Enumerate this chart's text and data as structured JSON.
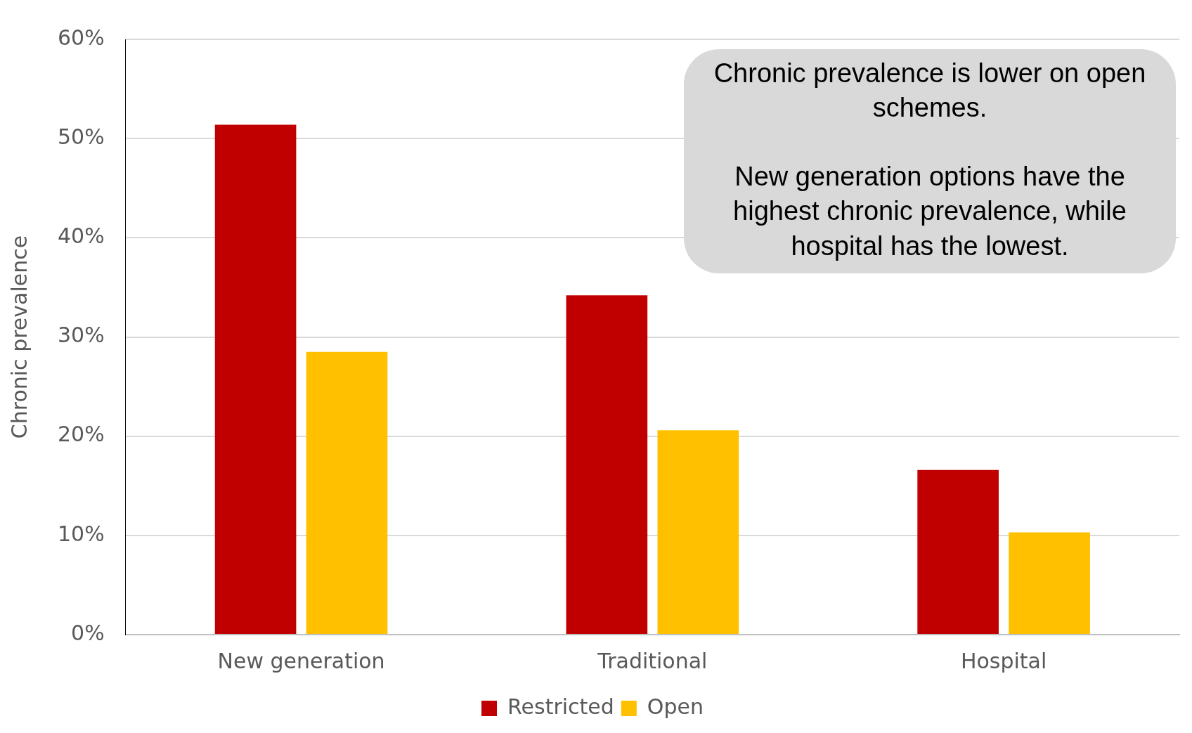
{
  "chart_data": {
    "type": "bar",
    "ylabel": "Chronic prevalence",
    "categories": [
      "New generation",
      "Traditional",
      "Hospital"
    ],
    "series": [
      {
        "name": "Restricted",
        "color": "#c00000",
        "values": [
          51.4,
          34.2,
          16.6
        ]
      },
      {
        "name": "Open",
        "color": "#ffc000",
        "values": [
          28.5,
          20.6,
          10.3
        ]
      }
    ],
    "ylim": [
      0,
      60
    ],
    "yticks": [
      {
        "value": 0,
        "label": "0%"
      },
      {
        "value": 10,
        "label": "10%"
      },
      {
        "value": 20,
        "label": "20%"
      },
      {
        "value": 30,
        "label": "30%"
      },
      {
        "value": 40,
        "label": "40%"
      },
      {
        "value": 50,
        "label": "50%"
      },
      {
        "value": 60,
        "label": "60%"
      }
    ],
    "grid": "y",
    "legend": "bottom",
    "annotations": [
      "Chronic prevalence is lower on open schemes.",
      "New generation options have the highest chronic prevalence, while hospital has the lowest."
    ]
  }
}
